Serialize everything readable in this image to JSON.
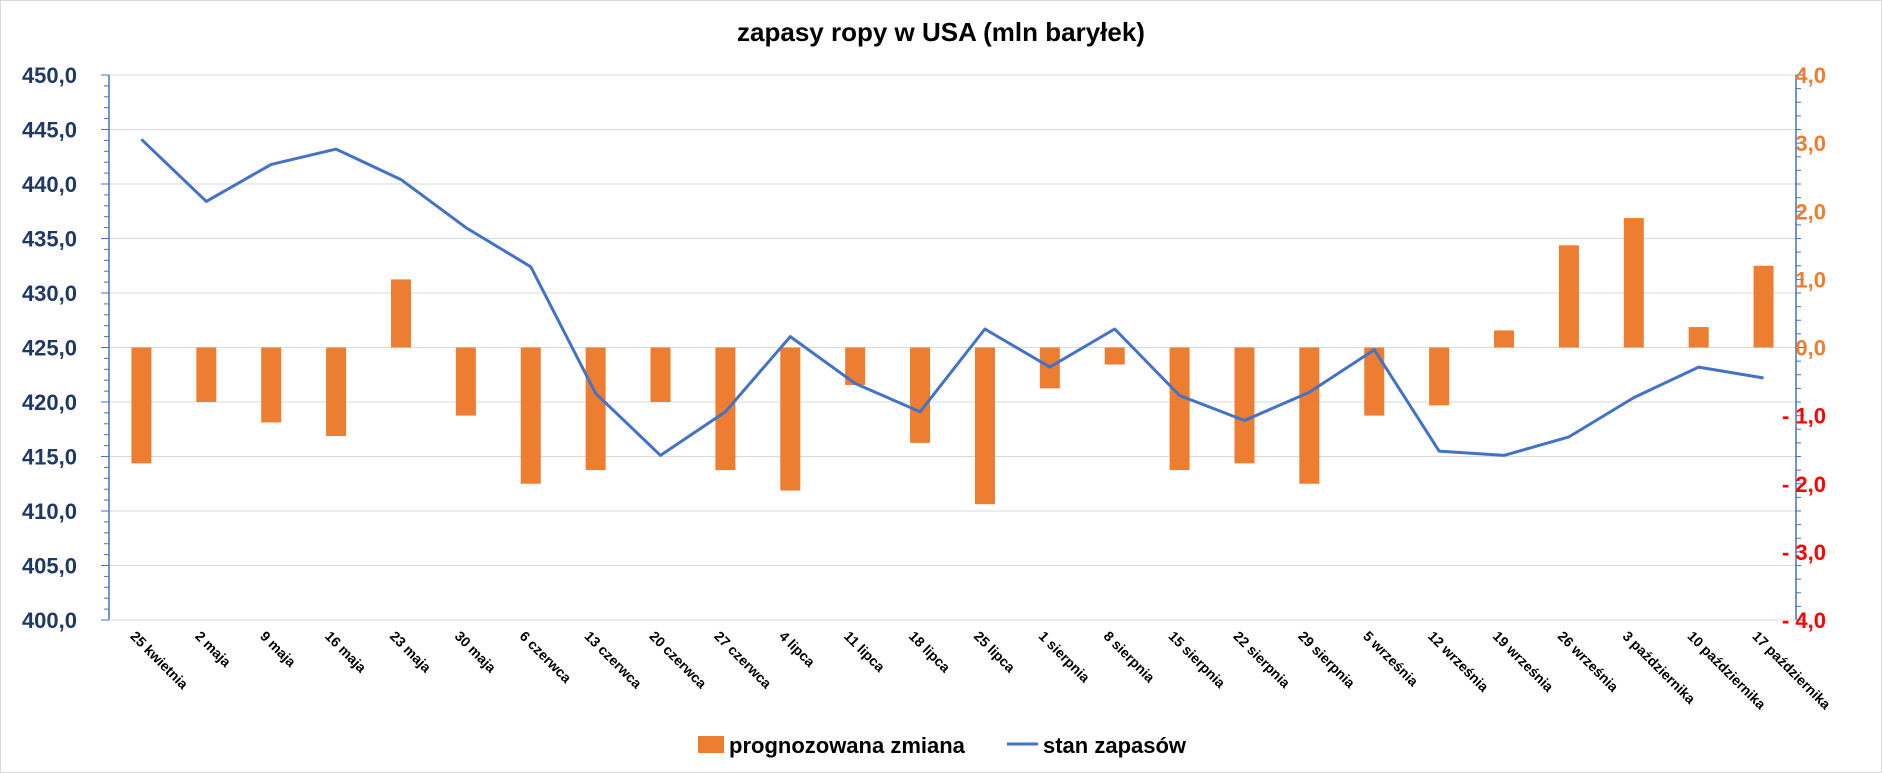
{
  "chart_data": {
    "type": "bar",
    "title": "zapasy ropy w USA (mln baryłek)",
    "categories": [
      "25 kwietnia",
      "2 maja",
      "9 maja",
      "16 maja",
      "23 maja",
      "30 maja",
      "6 czerwca",
      "13 czerwca",
      "20 czerwca",
      "27 czerwca",
      "4 lipca",
      "11 lipca",
      "18 lipca",
      "25 lipca",
      "1 sierpnia",
      "8 sierpnia",
      "15 sierpnia",
      "22 sierpnia",
      "29 sierpnia",
      "5 września",
      "12 września",
      "19 września",
      "26 września",
      "3 października",
      "10 października",
      "17 października"
    ],
    "series": [
      {
        "name": "prognozowana zmiana",
        "type": "bar",
        "axis": "right",
        "color": "#ed7d31",
        "values": [
          -1.7,
          -0.8,
          -1.1,
          -1.3,
          1.0,
          -1.0,
          -2.0,
          -1.8,
          -0.8,
          -1.8,
          -2.1,
          -0.55,
          -1.4,
          -2.3,
          -0.6,
          -0.25,
          -1.8,
          -1.7,
          -2.0,
          -1.0,
          -0.85,
          0.25,
          1.5,
          1.9,
          0.3,
          1.2
        ]
      },
      {
        "name": "stan zapasów",
        "type": "line",
        "axis": "left",
        "color": "#4472c4",
        "values": [
          444.1,
          438.4,
          441.8,
          443.2,
          440.4,
          436.0,
          432.4,
          420.8,
          415.1,
          419.1,
          426.0,
          421.7,
          419.1,
          426.7,
          423.2,
          426.7,
          420.6,
          418.3,
          420.9,
          424.8,
          415.5,
          415.1,
          416.8,
          420.4,
          423.2,
          422.2
        ]
      }
    ],
    "yaxis_left": {
      "min": 400,
      "max": 450,
      "major_step": 5,
      "minor_step": 1,
      "tick_labels": [
        "450,0",
        "445,0",
        "440,0",
        "435,0",
        "430,0",
        "425,0",
        "420,0",
        "415,0",
        "410,0",
        "405,0",
        "400,0"
      ]
    },
    "yaxis_right": {
      "min": -4,
      "max": 4,
      "major_step": 1,
      "tick_labels": [
        "4,0",
        "3,0",
        "2,0",
        "1,0",
        "0,0",
        "- 1,0",
        "- 2,0",
        "- 3,0",
        "- 4,0"
      ],
      "positive_color": "#ed7d31",
      "negative_color": "#ff0000"
    },
    "gridlines": true,
    "legend_position": "bottom"
  },
  "colors": {
    "left_axis_text": "#1f3864",
    "axis_line": "#4472c4",
    "gridline": "#d9d9d9"
  }
}
